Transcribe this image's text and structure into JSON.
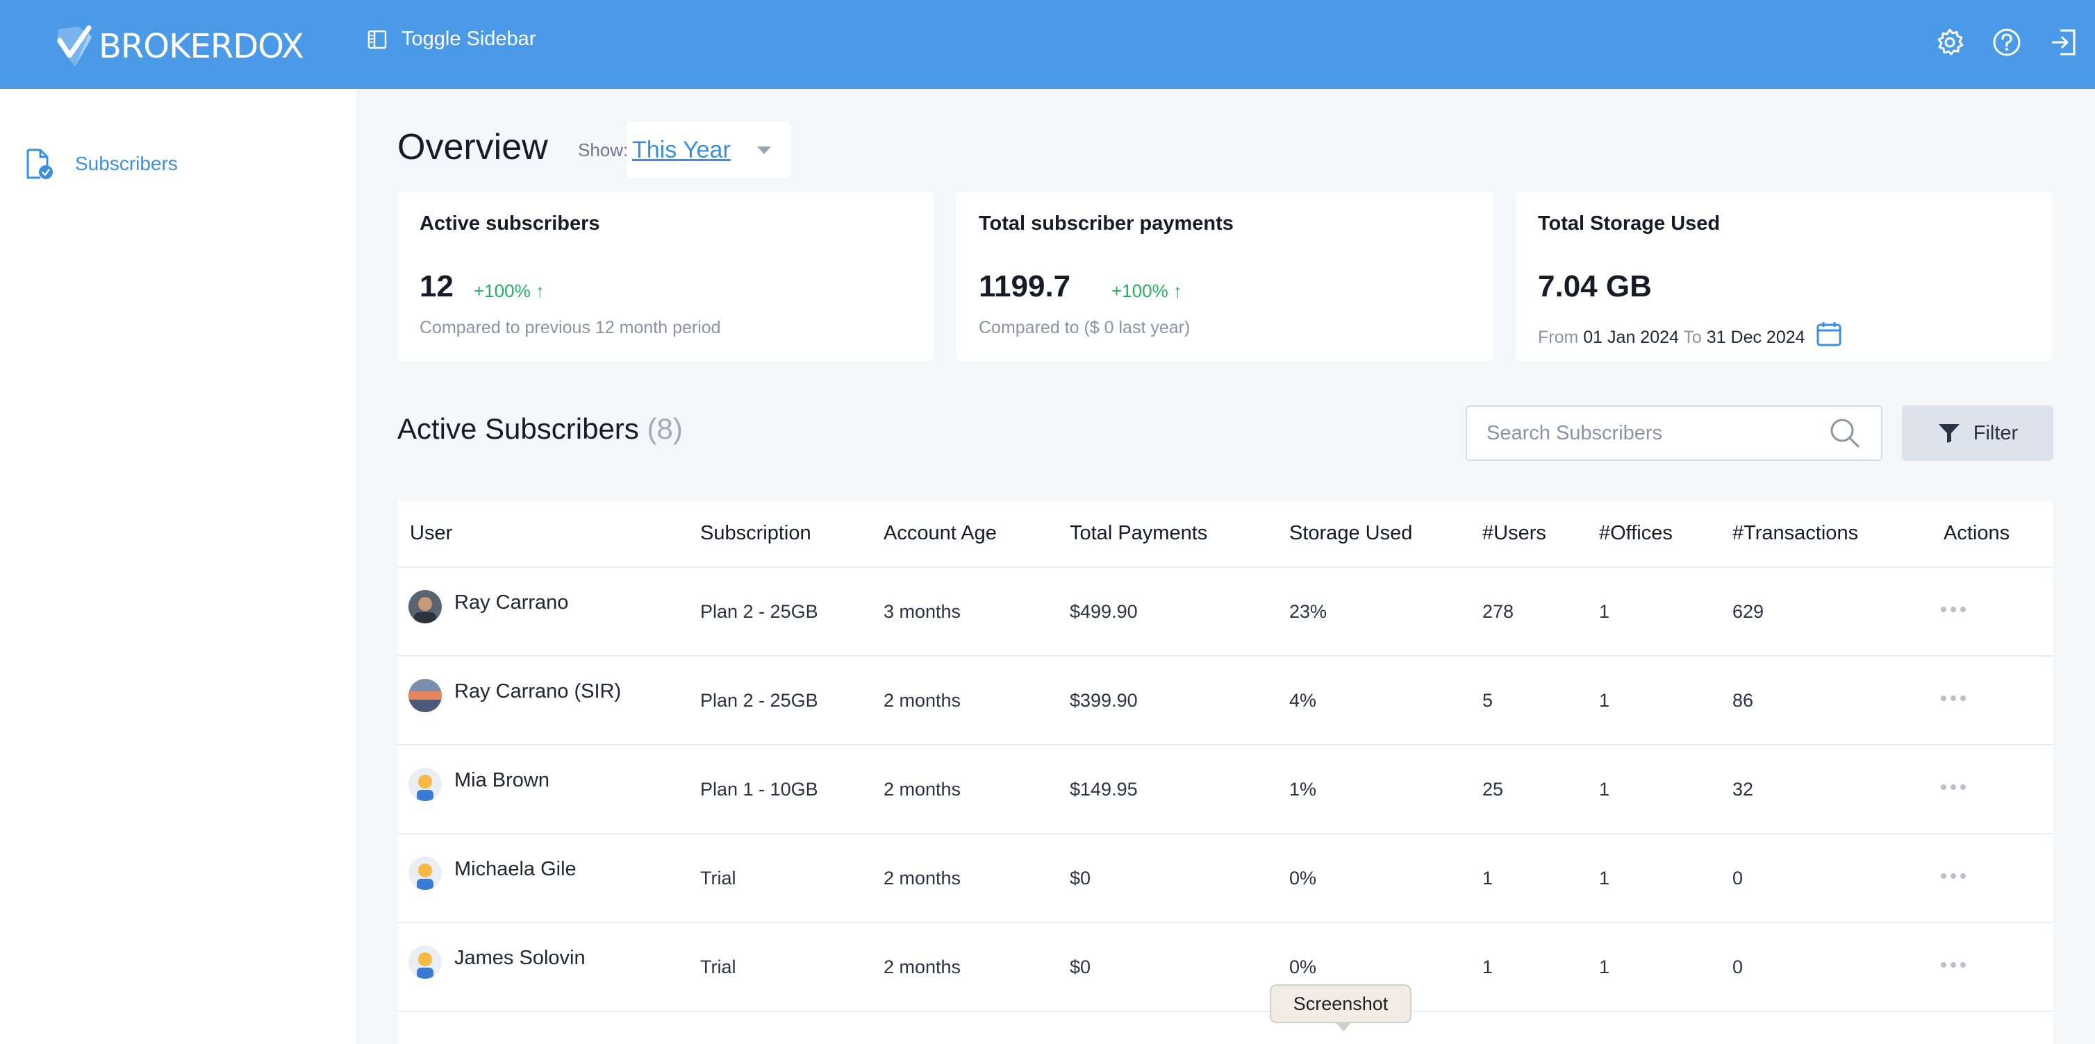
{
  "brand": {
    "name": "BROKERDOX",
    "accent": "#4a9ae8"
  },
  "header": {
    "toggle_label": "Toggle Sidebar",
    "icons": [
      "gear-icon",
      "help-icon",
      "logout-icon"
    ]
  },
  "sidebar": {
    "items": [
      {
        "label": "Subscribers",
        "icon": "document-check-icon"
      }
    ]
  },
  "overview": {
    "title": "Overview",
    "show_label": "Show:",
    "period": "This Year"
  },
  "cards": {
    "active": {
      "title": "Active subscribers",
      "value": "12",
      "delta": "+100%",
      "sub": "Compared to previous 12 month period"
    },
    "payments": {
      "title": "Total subscriber payments",
      "value": "1199.7",
      "delta": "+100%",
      "sub": "Compared to ($ 0 last year)"
    },
    "storage": {
      "title": "Total Storage Used",
      "value": "7.04 GB",
      "from_label": "From",
      "from": "01 Jan 2024",
      "to_label": "To",
      "to": "31 Dec 2024"
    }
  },
  "subscribers": {
    "title": "Active Subscribers",
    "count": "(8)",
    "search_placeholder": "Search Subscribers",
    "filter_label": "Filter",
    "columns": [
      "User",
      "Subscription",
      "Account Age",
      "Total Payments",
      "Storage Used",
      "#Users",
      "#Offices",
      "#Transactions",
      "Actions"
    ],
    "rows": [
      {
        "user": "Ray Carrano",
        "subscription": "Plan 2 - 25GB",
        "age": "3 months",
        "payments": "$499.90",
        "storage": "23%",
        "users": "278",
        "offices": "1",
        "transactions": "629"
      },
      {
        "user": "Ray Carrano (SIR)",
        "subscription": "Plan 2 - 25GB",
        "age": "2 months",
        "payments": "$399.90",
        "storage": "4%",
        "users": "5",
        "offices": "1",
        "transactions": "86"
      },
      {
        "user": "Mia Brown",
        "subscription": "Plan 1 - 10GB",
        "age": "2 months",
        "payments": "$149.95",
        "storage": "1%",
        "users": "25",
        "offices": "1",
        "transactions": "32"
      },
      {
        "user": "Michaela Gile",
        "subscription": "Trial",
        "age": "2 months",
        "payments": "$0",
        "storage": "0%",
        "users": "1",
        "offices": "1",
        "transactions": "0"
      },
      {
        "user": "James Solovin",
        "subscription": "Trial",
        "age": "2 months",
        "payments": "$0",
        "storage": "0%",
        "users": "1",
        "offices": "1",
        "transactions": "0"
      }
    ]
  },
  "tooltip": {
    "text": "Screenshot"
  }
}
